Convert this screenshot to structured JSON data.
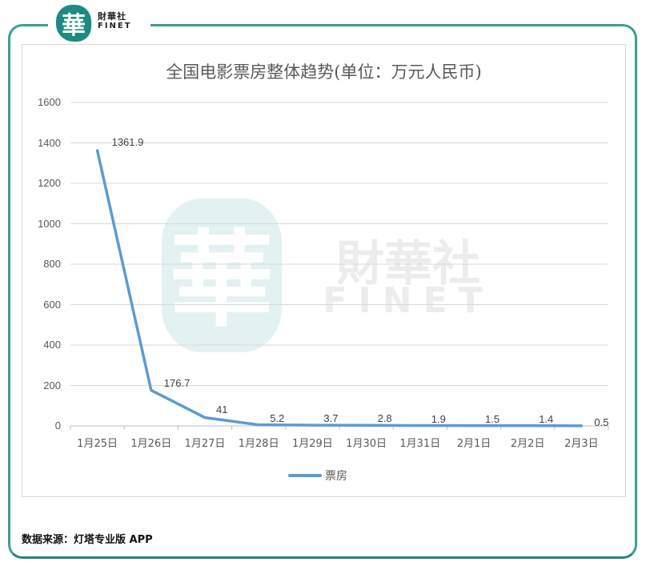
{
  "brand": {
    "logo_glyph": "華",
    "name_cn": "財華社",
    "name_en": "FINET",
    "accent_color": "#1e8a80"
  },
  "chart_data": {
    "type": "line",
    "title": "全国电影票房整体趋势(单位：万元人民币)",
    "xlabel": "",
    "ylabel": "",
    "categories": [
      "1月25日",
      "1月26日",
      "1月27日",
      "1月28日",
      "1月29日",
      "1月30日",
      "1月31日",
      "2月1日",
      "2月2日",
      "2月3日"
    ],
    "series": [
      {
        "name": "票房",
        "color": "#5b9bd5",
        "values": [
          1361.9,
          176.7,
          41,
          5.2,
          3.7,
          2.8,
          1.9,
          1.5,
          1.4,
          0.5
        ],
        "labels": [
          "1361.9",
          "176.7",
          "41",
          "5.2",
          "3.7",
          "2.8",
          "1.9",
          "1.5",
          "1.4",
          "0.5"
        ]
      }
    ],
    "ylim": [
      0,
      1600
    ],
    "yticks": [
      "0",
      "200",
      "400",
      "600",
      "800",
      "1000",
      "1200",
      "1400",
      "1600"
    ],
    "grid": true,
    "legend_position": "bottom"
  },
  "legend": {
    "label": "票房"
  },
  "footer": {
    "source": "数据来源：灯塔专业版 APP"
  }
}
